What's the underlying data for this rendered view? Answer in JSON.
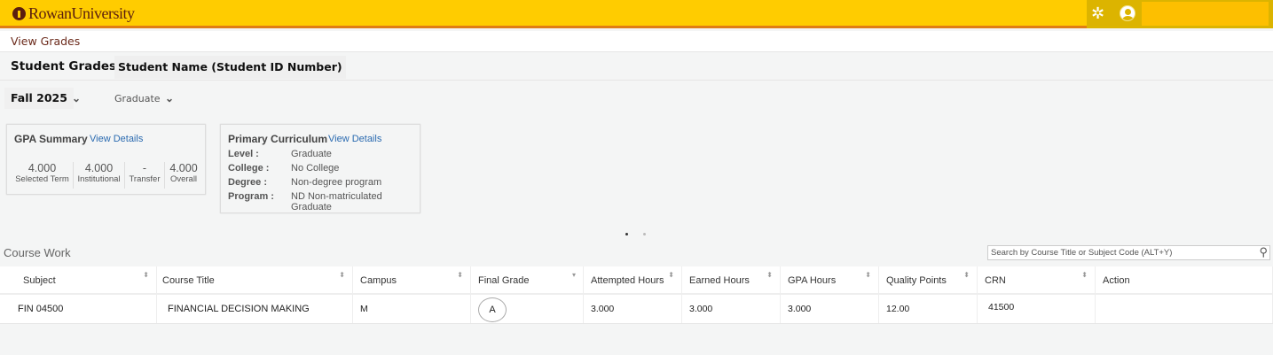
{
  "header": {
    "logo": "RowanUniversity",
    "icons": [
      "gear-icon",
      "user-icon"
    ]
  },
  "breadcrumb": "View Grades",
  "page": {
    "title": "Student Grades -",
    "student": "Student Name (Student ID Number)"
  },
  "filters": {
    "term": "Fall 2025",
    "level": "Graduate"
  },
  "gpa_summary": {
    "title": "GPA Summary",
    "link": "View Details",
    "items": [
      {
        "value": "4.000",
        "label": "Selected Term"
      },
      {
        "value": "4.000",
        "label": "Institutional"
      },
      {
        "value": "-",
        "label": "Transfer"
      },
      {
        "value": "4.000",
        "label": "Overall"
      }
    ]
  },
  "curriculum": {
    "title": "Primary Curriculum",
    "link": "View Details",
    "rows": [
      {
        "k": "Level :",
        "v": "Graduate"
      },
      {
        "k": "College :",
        "v": "No College"
      },
      {
        "k": "Degree :",
        "v": "Non-degree program"
      },
      {
        "k": "Program :",
        "v": "ND Non-matriculated Graduate"
      }
    ]
  },
  "carousel": {
    "pages": 2,
    "active": 1
  },
  "coursework": {
    "title": "Course Work",
    "search_placeholder": "Search by Course Title or Subject Code (ALT+Y)",
    "columns": [
      "Subject",
      "Course Title",
      "Campus",
      "Final Grade",
      "Attempted Hours",
      "Earned Hours",
      "GPA Hours",
      "Quality Points",
      "CRN",
      "Action"
    ],
    "rows": [
      [
        "FIN 04500",
        "FINANCIAL DECISION MAKING",
        "M",
        "A",
        "3.000",
        "3.000",
        "3.000",
        "12.00",
        "41500",
        ""
      ]
    ]
  },
  "colors": {
    "header": "#ffcc00",
    "accent": "#e07d14",
    "link": "#2a6ab0",
    "brand": "#5a1e0f"
  }
}
